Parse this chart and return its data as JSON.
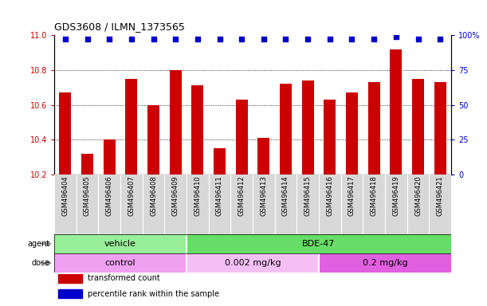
{
  "title": "GDS3608 / ILMN_1373565",
  "samples": [
    "GSM496404",
    "GSM496405",
    "GSM496406",
    "GSM496407",
    "GSM496408",
    "GSM496409",
    "GSM496410",
    "GSM496411",
    "GSM496412",
    "GSM496413",
    "GSM496414",
    "GSM496415",
    "GSM496416",
    "GSM496417",
    "GSM496418",
    "GSM496419",
    "GSM496420",
    "GSM496421"
  ],
  "transformed_count": [
    10.67,
    10.32,
    10.4,
    10.75,
    10.6,
    10.8,
    10.71,
    10.35,
    10.63,
    10.41,
    10.72,
    10.74,
    10.63,
    10.67,
    10.73,
    10.92,
    10.75,
    10.73
  ],
  "percentile_rank": [
    97,
    97,
    97,
    97,
    97,
    97,
    97,
    97,
    97,
    97,
    97,
    97,
    97,
    97,
    97,
    99,
    97,
    97
  ],
  "bar_color": "#cc0000",
  "dot_color": "#0000cc",
  "ylim_left": [
    10.2,
    11.0
  ],
  "ylim_right": [
    0,
    100
  ],
  "yticks_left": [
    10.2,
    10.4,
    10.6,
    10.8,
    11.0
  ],
  "yticks_right": [
    0,
    25,
    50,
    75,
    100
  ],
  "ytick_labels_right": [
    "0",
    "25",
    "50",
    "75",
    "100%"
  ],
  "grid_values": [
    10.4,
    10.6,
    10.8
  ],
  "agent_groups": [
    {
      "label": "vehicle",
      "start": 0,
      "end": 6,
      "color": "#99ee99"
    },
    {
      "label": "BDE-47",
      "start": 6,
      "end": 18,
      "color": "#66dd66"
    }
  ],
  "dose_groups": [
    {
      "label": "control",
      "start": 0,
      "end": 6,
      "color": "#f0a0f0"
    },
    {
      "label": "0.002 mg/kg",
      "start": 6,
      "end": 12,
      "color": "#f4c0f4"
    },
    {
      "label": "0.2 mg/kg",
      "start": 12,
      "end": 18,
      "color": "#e060e0"
    }
  ],
  "legend_items": [
    {
      "color": "#cc0000",
      "label": "transformed count"
    },
    {
      "color": "#0000cc",
      "label": "percentile rank within the sample"
    }
  ],
  "bar_width": 0.55,
  "background_color": "#ffffff",
  "tick_color_left": "#cc0000",
  "tick_color_right": "#0000cc",
  "xtick_label_fontsize": 6,
  "label_fontsize": 7,
  "row_label_fontsize": 8
}
